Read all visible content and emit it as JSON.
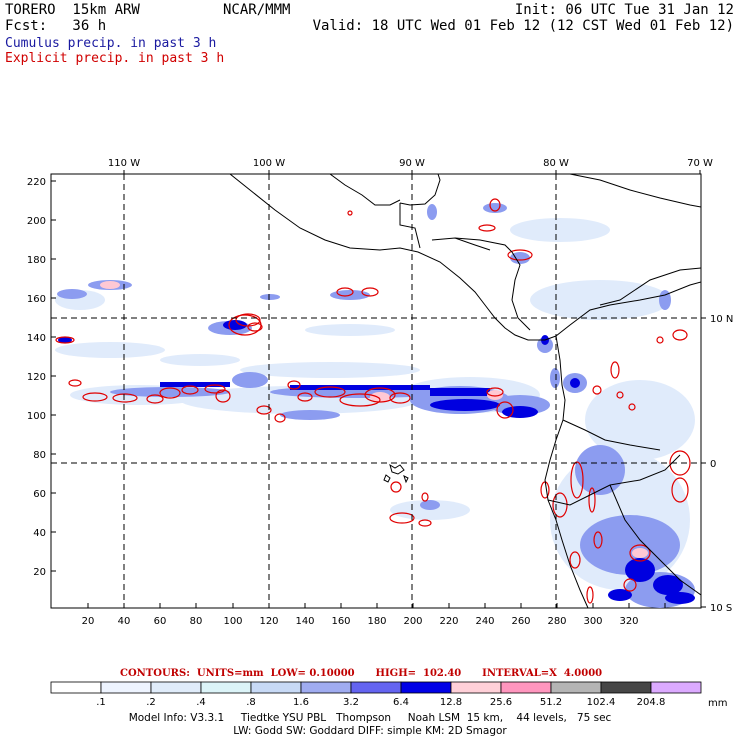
{
  "header": {
    "left_line1": "TORERO  15km ARW",
    "center_line1": "NCAR/MMM",
    "right_line1": "Init: 06 UTC Tue 31 Jan 12",
    "left_line2": "Fcst:   36 h",
    "right_line2": "Valid: 18 UTC Wed 01 Feb 12 (12 CST Wed 01 Feb 12)",
    "cumulus_label": "Cumulus precip. in past 3 h",
    "explicit_label": "Explicit precip. in past 3 h",
    "cumulus_color": "#1a1aa0",
    "explicit_color": "#d00000"
  },
  "map": {
    "top_ticks": [
      "110 W",
      "100 W",
      "90 W",
      "80 W",
      "70 W"
    ],
    "right_ticks": [
      "10 N",
      "0",
      "10 S"
    ],
    "left_ticks": [
      "220",
      "200",
      "180",
      "160",
      "140",
      "120",
      "100",
      "80",
      "60",
      "40",
      "20"
    ],
    "bottom_ticks": [
      "20",
      "40",
      "60",
      "80",
      "100",
      "120",
      "140",
      "160",
      "180",
      "200",
      "220",
      "240",
      "260",
      "280",
      "300",
      "320"
    ]
  },
  "contours": {
    "label": "CONTOURS:  UNITS=mm  LOW= 0.10000      HIGH=  102.40      INTERVAL=X  4.0000"
  },
  "colorbar": {
    "levels": [
      ".1",
      ".2",
      ".4",
      ".8",
      "1.6",
      "3.2",
      "6.4",
      "12.8",
      "25.6",
      "51.2",
      "102.4",
      "204.8"
    ],
    "unit": "mm",
    "colors": [
      "#ffffff",
      "#eef4ff",
      "#e0ecfa",
      "#dcf4f8",
      "#c8daf6",
      "#a0acf0",
      "#6464f0",
      "#0000e6",
      "#ffd0d8",
      "#ff96be",
      "#b4b4b4",
      "#464646",
      "#dcaaff"
    ]
  },
  "footer": {
    "line1": "Model Info: V3.3.1     Tiedtke YSU PBL   Thompson     Noah LSM  15 km,    44 levels,   75 sec",
    "line2": "LW: Godd SW: Goddard DIFF: simple KM: 2D Smagor"
  }
}
